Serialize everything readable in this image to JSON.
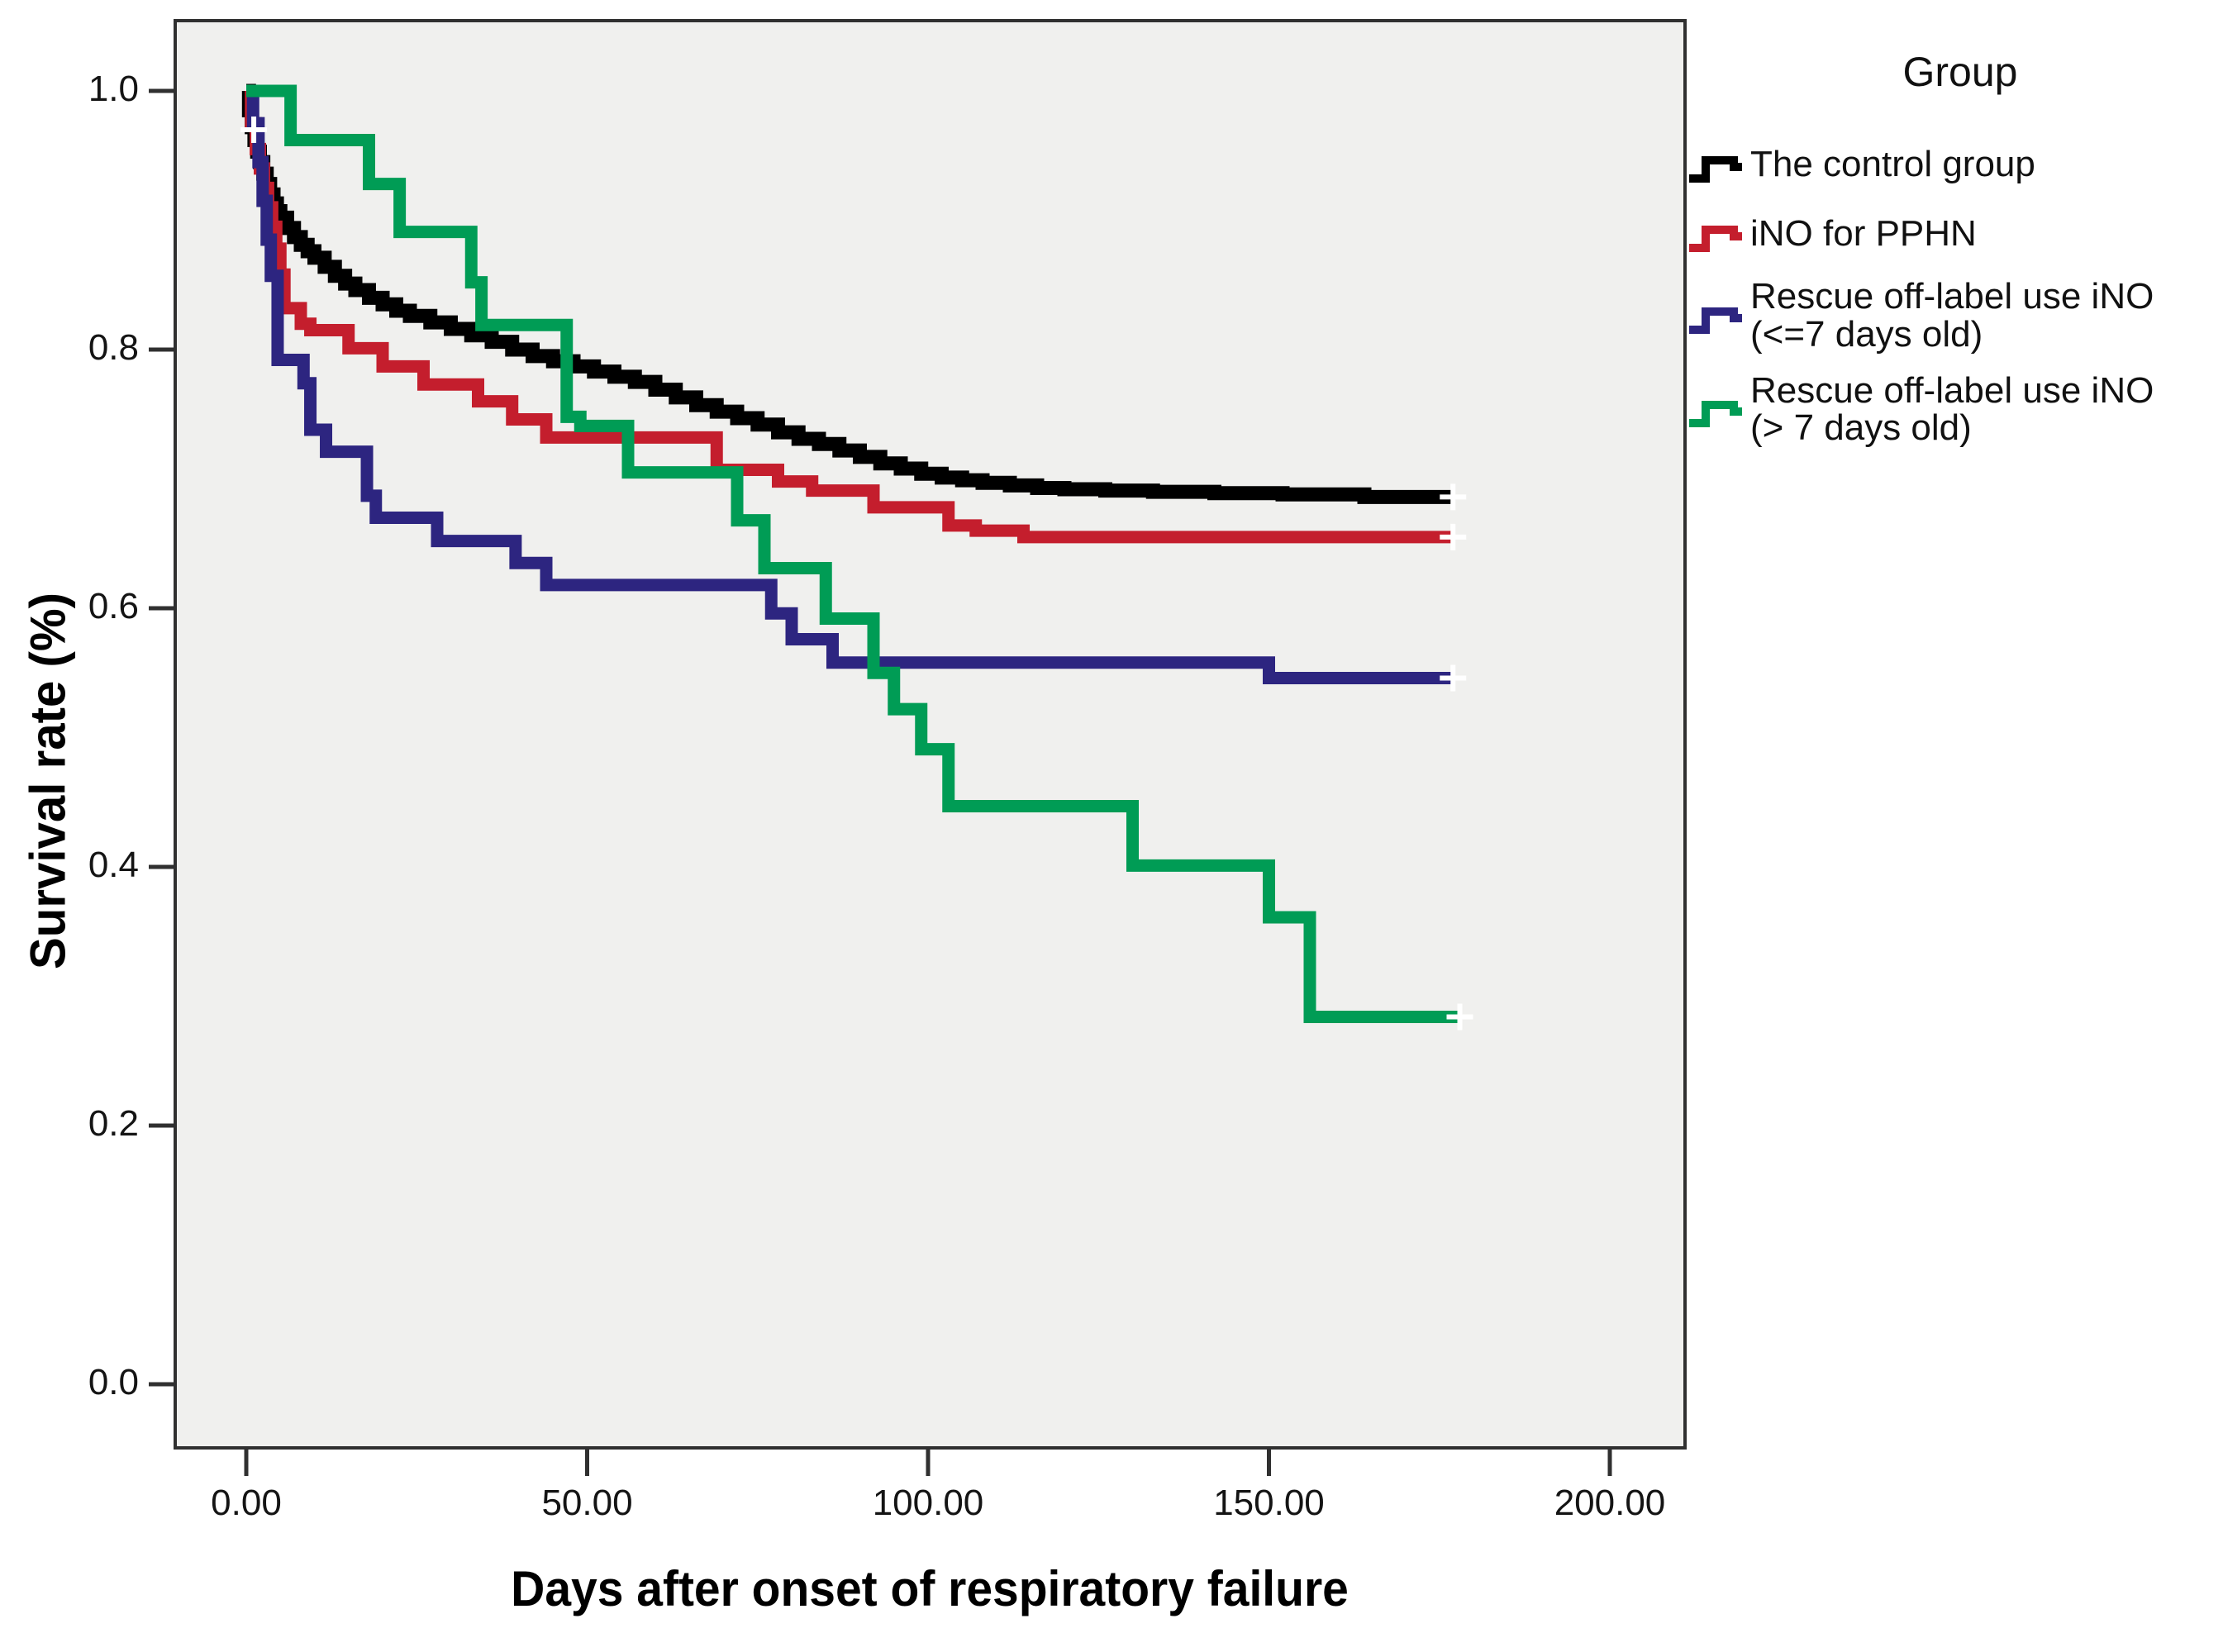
{
  "figure": {
    "plot_bg": "#F0F0EE",
    "frame_color": "#303030",
    "tick_color": "#303030",
    "censor_color": "#FFFFFF",
    "accent_black": "#000000",
    "accent_red": "#C41E2D",
    "accent_navy": "#2D2580",
    "accent_green": "#009C55"
  },
  "legend": {
    "title": "Group"
  },
  "chart_data": {
    "type": "line",
    "step": true,
    "title": "",
    "xlabel": "Days after onset of respiratory failure",
    "ylabel": "Survival rate (%)",
    "xlim": [
      -10.4,
      211
    ],
    "ylim": [
      -0.05,
      1.055
    ],
    "grid": false,
    "legend_position": "right",
    "legend_title": "Group",
    "x_ticks": [
      {
        "value": 0,
        "label": "0.00"
      },
      {
        "value": 50,
        "label": "50.00"
      },
      {
        "value": 100,
        "label": "100.00"
      },
      {
        "value": 150,
        "label": "150.00"
      },
      {
        "value": 200,
        "label": "200.00"
      }
    ],
    "y_ticks": [
      {
        "value": 1.0,
        "label": "1.0"
      },
      {
        "value": 0.8,
        "label": "0.8"
      },
      {
        "value": 0.6,
        "label": "0.6"
      },
      {
        "value": 0.4,
        "label": "0.4"
      },
      {
        "value": 0.2,
        "label": "0.2"
      },
      {
        "value": 0.0,
        "label": "0.0"
      }
    ],
    "series": [
      {
        "name": "The control group",
        "legend_lines": [
          "The control group"
        ],
        "color": "#000000",
        "stroke_width": 17,
        "end_censor": true,
        "points": [
          [
            0,
            1.0
          ],
          [
            0.4,
            0.985
          ],
          [
            0.8,
            0.972
          ],
          [
            1.2,
            0.962
          ],
          [
            1.6,
            0.953
          ],
          [
            2,
            0.945
          ],
          [
            2.5,
            0.936
          ],
          [
            3,
            0.928
          ],
          [
            3.5,
            0.92
          ],
          [
            4,
            0.913
          ],
          [
            4.5,
            0.907
          ],
          [
            5,
            0.902
          ],
          [
            6,
            0.894
          ],
          [
            7,
            0.887
          ],
          [
            8,
            0.881
          ],
          [
            9,
            0.876
          ],
          [
            10,
            0.871
          ],
          [
            11.5,
            0.864
          ],
          [
            13,
            0.857
          ],
          [
            14.5,
            0.851
          ],
          [
            16,
            0.846
          ],
          [
            18,
            0.84
          ],
          [
            20,
            0.835
          ],
          [
            22,
            0.83
          ],
          [
            24,
            0.826
          ],
          [
            27,
            0.821
          ],
          [
            30,
            0.816
          ],
          [
            33,
            0.811
          ],
          [
            36,
            0.806
          ],
          [
            39,
            0.8
          ],
          [
            42,
            0.795
          ],
          [
            45,
            0.791
          ],
          [
            48,
            0.787
          ],
          [
            51,
            0.783
          ],
          [
            54,
            0.779
          ],
          [
            57,
            0.775
          ],
          [
            60,
            0.769
          ],
          [
            63,
            0.763
          ],
          [
            66,
            0.757
          ],
          [
            69,
            0.752
          ],
          [
            72,
            0.747
          ],
          [
            75,
            0.742
          ],
          [
            78,
            0.736
          ],
          [
            81,
            0.731
          ],
          [
            84,
            0.727
          ],
          [
            87,
            0.722
          ],
          [
            90,
            0.717
          ],
          [
            93,
            0.712
          ],
          [
            96,
            0.708
          ],
          [
            99,
            0.704
          ],
          [
            102,
            0.701
          ],
          [
            105,
            0.699
          ],
          [
            108,
            0.697
          ],
          [
            112,
            0.695
          ],
          [
            116,
            0.693
          ],
          [
            120,
            0.692
          ],
          [
            126,
            0.691
          ],
          [
            133,
            0.69
          ],
          [
            142,
            0.689
          ],
          [
            152,
            0.688
          ],
          [
            164,
            0.686
          ],
          [
            177,
            0.686
          ]
        ]
      },
      {
        "name": "iNO for PPHN",
        "legend_lines": [
          "iNO for PPHN"
        ],
        "color": "#C41E2D",
        "stroke_width": 15,
        "end_censor": true,
        "points": [
          [
            0,
            1.0
          ],
          [
            0.7,
            0.975
          ],
          [
            1.4,
            0.955
          ],
          [
            2,
            0.94
          ],
          [
            2.6,
            0.925
          ],
          [
            3.2,
            0.91
          ],
          [
            3.8,
            0.895
          ],
          [
            4.4,
            0.878
          ],
          [
            5,
            0.858
          ],
          [
            5.6,
            0.832
          ],
          [
            8,
            0.82
          ],
          [
            9.4,
            0.815
          ],
          [
            15,
            0.801
          ],
          [
            20,
            0.787
          ],
          [
            26,
            0.773
          ],
          [
            34,
            0.76
          ],
          [
            39,
            0.746
          ],
          [
            44,
            0.732
          ],
          [
            69,
            0.707
          ],
          [
            78,
            0.698
          ],
          [
            83,
            0.691
          ],
          [
            92,
            0.678
          ],
          [
            103,
            0.664
          ],
          [
            107,
            0.66
          ],
          [
            114,
            0.655
          ],
          [
            177,
            0.655
          ]
        ]
      },
      {
        "name": "Rescue off-label use iNO (<=7 days old)",
        "legend_lines": [
          "Rescue off-label use iNO",
          "(<=7 days old)"
        ],
        "color": "#2D2580",
        "stroke_width": 15,
        "end_censor": true,
        "points": [
          [
            0,
            1.0
          ],
          [
            1,
            0.975
          ],
          [
            1.8,
            0.945
          ],
          [
            2.4,
            0.915
          ],
          [
            3,
            0.885
          ],
          [
            3.6,
            0.857
          ],
          [
            4.6,
            0.792
          ],
          [
            8.4,
            0.774
          ],
          [
            9.4,
            0.738
          ],
          [
            11.7,
            0.721
          ],
          [
            17.7,
            0.687
          ],
          [
            19,
            0.67
          ],
          [
            28,
            0.652
          ],
          [
            39.5,
            0.635
          ],
          [
            44,
            0.618
          ],
          [
            77,
            0.596
          ],
          [
            80,
            0.576
          ],
          [
            86,
            0.558
          ],
          [
            150,
            0.546
          ],
          [
            177,
            0.546
          ]
        ]
      },
      {
        "name": "Rescue off-label use iNO (> 7 days old)",
        "legend_lines": [
          "Rescue off-label use iNO",
          "(> 7 days old)"
        ],
        "color": "#009C55",
        "stroke_width": 15,
        "end_censor": true,
        "points": [
          [
            0,
            1.0
          ],
          [
            6.5,
            0.962
          ],
          [
            18,
            0.928
          ],
          [
            22.5,
            0.891
          ],
          [
            33,
            0.852
          ],
          [
            34.5,
            0.819
          ],
          [
            47,
            0.748
          ],
          [
            49,
            0.741
          ],
          [
            56,
            0.705
          ],
          [
            72,
            0.668
          ],
          [
            76,
            0.631
          ],
          [
            85,
            0.592
          ],
          [
            92,
            0.55
          ],
          [
            95,
            0.522
          ],
          [
            99,
            0.491
          ],
          [
            103,
            0.447
          ],
          [
            130,
            0.401
          ],
          [
            150,
            0.361
          ],
          [
            156,
            0.284
          ],
          [
            178,
            0.284
          ]
        ]
      }
    ],
    "extra_censor_marks": [
      {
        "series": 0,
        "x": 1.1,
        "y": 0.97
      }
    ]
  }
}
